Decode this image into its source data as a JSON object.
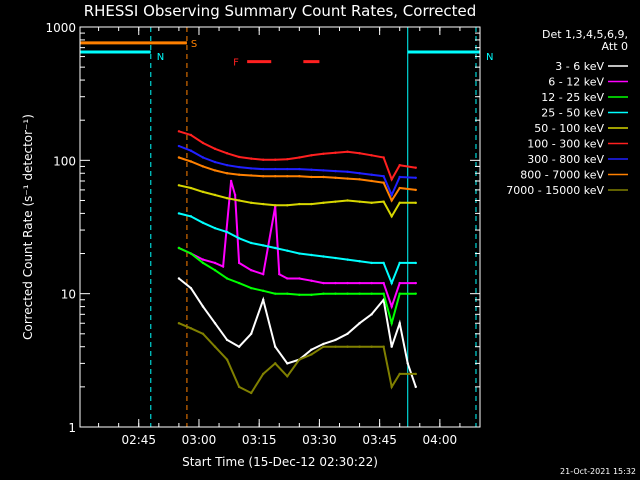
{
  "chart_data": {
    "type": "line",
    "title": "RHESSI Observing Summary Count Rates, Corrected",
    "xlabel": "Start Time (15-Dec-12 02:30:22)",
    "ylabel": "Corrected Count Rate (s⁻¹ detector⁻¹)",
    "yscale": "log",
    "ylim": [
      1,
      1000
    ],
    "xlim": [
      "02:30:22",
      "04:10:00"
    ],
    "x_ticks": [
      "02:45",
      "03:00",
      "03:15",
      "03:30",
      "03:45",
      "04:00"
    ],
    "y_ticks": [
      "1",
      "10",
      "100",
      "1000"
    ],
    "legend_header": [
      "Det 1,3,4,5,6,9,",
      "Att 0"
    ],
    "legend_position": "top-right",
    "series": [
      {
        "name": "3 - 6 keV",
        "color": "#ffffff",
        "points": [
          [
            "02:55",
            13
          ],
          [
            "02:58",
            11
          ],
          [
            "03:01",
            8
          ],
          [
            "03:04",
            6
          ],
          [
            "03:07",
            4.5
          ],
          [
            "03:10",
            4
          ],
          [
            "03:13",
            5
          ],
          [
            "03:16",
            9
          ],
          [
            "03:19",
            4
          ],
          [
            "03:22",
            3
          ],
          [
            "03:25",
            3.2
          ],
          [
            "03:28",
            3.8
          ],
          [
            "03:31",
            4.2
          ],
          [
            "03:34",
            4.5
          ],
          [
            "03:37",
            5
          ],
          [
            "03:40",
            6
          ],
          [
            "03:43",
            7
          ],
          [
            "03:46",
            9
          ],
          [
            "03:48",
            4
          ],
          [
            "03:50",
            6
          ],
          [
            "03:52",
            3
          ],
          [
            "03:54",
            2
          ]
        ]
      },
      {
        "name": "6 - 12 keV",
        "color": "#ff00ff",
        "points": [
          [
            "02:55",
            22
          ],
          [
            "02:58",
            20
          ],
          [
            "03:01",
            18
          ],
          [
            "03:04",
            17
          ],
          [
            "03:06",
            16
          ],
          [
            "03:08",
            70
          ],
          [
            "03:09",
            55
          ],
          [
            "03:10",
            17
          ],
          [
            "03:13",
            15
          ],
          [
            "03:16",
            14
          ],
          [
            "03:19",
            45
          ],
          [
            "03:20",
            14
          ],
          [
            "03:22",
            13
          ],
          [
            "03:25",
            13
          ],
          [
            "03:28",
            12.5
          ],
          [
            "03:31",
            12
          ],
          [
            "03:34",
            12
          ],
          [
            "03:37",
            12
          ],
          [
            "03:40",
            12
          ],
          [
            "03:43",
            12
          ],
          [
            "03:46",
            12
          ],
          [
            "03:48",
            8
          ],
          [
            "03:50",
            12
          ],
          [
            "03:54",
            12
          ]
        ]
      },
      {
        "name": "12 - 25 keV",
        "color": "#00ff00",
        "points": [
          [
            "02:55",
            22
          ],
          [
            "02:58",
            20
          ],
          [
            "03:01",
            17
          ],
          [
            "03:04",
            15
          ],
          [
            "03:07",
            13
          ],
          [
            "03:10",
            12
          ],
          [
            "03:13",
            11
          ],
          [
            "03:16",
            10.5
          ],
          [
            "03:19",
            10
          ],
          [
            "03:22",
            10
          ],
          [
            "03:25",
            9.8
          ],
          [
            "03:28",
            9.8
          ],
          [
            "03:31",
            10
          ],
          [
            "03:34",
            10
          ],
          [
            "03:37",
            10
          ],
          [
            "03:40",
            10
          ],
          [
            "03:43",
            10
          ],
          [
            "03:46",
            10
          ],
          [
            "03:48",
            6
          ],
          [
            "03:50",
            10
          ],
          [
            "03:54",
            10
          ]
        ]
      },
      {
        "name": "25 - 50 keV",
        "color": "#00ffff",
        "points": [
          [
            "02:55",
            40
          ],
          [
            "02:58",
            38
          ],
          [
            "03:01",
            34
          ],
          [
            "03:04",
            31
          ],
          [
            "03:07",
            29
          ],
          [
            "03:10",
            26
          ],
          [
            "03:13",
            24
          ],
          [
            "03:16",
            23
          ],
          [
            "03:19",
            22
          ],
          [
            "03:22",
            21
          ],
          [
            "03:25",
            20
          ],
          [
            "03:28",
            19.5
          ],
          [
            "03:31",
            19
          ],
          [
            "03:34",
            18.5
          ],
          [
            "03:37",
            18
          ],
          [
            "03:40",
            17.5
          ],
          [
            "03:43",
            17
          ],
          [
            "03:46",
            17
          ],
          [
            "03:48",
            12
          ],
          [
            "03:50",
            17
          ],
          [
            "03:54",
            17
          ]
        ]
      },
      {
        "name": "50 - 100 keV",
        "color": "#d6d600",
        "points": [
          [
            "02:55",
            65
          ],
          [
            "02:58",
            62
          ],
          [
            "03:01",
            58
          ],
          [
            "03:04",
            55
          ],
          [
            "03:07",
            52
          ],
          [
            "03:10",
            50
          ],
          [
            "03:13",
            48
          ],
          [
            "03:16",
            47
          ],
          [
            "03:19",
            46
          ],
          [
            "03:22",
            46
          ],
          [
            "03:25",
            47
          ],
          [
            "03:28",
            47
          ],
          [
            "03:31",
            48
          ],
          [
            "03:34",
            49
          ],
          [
            "03:37",
            50
          ],
          [
            "03:40",
            49
          ],
          [
            "03:43",
            48
          ],
          [
            "03:46",
            49
          ],
          [
            "03:48",
            38
          ],
          [
            "03:50",
            48
          ],
          [
            "03:54",
            48
          ]
        ]
      },
      {
        "name": "100 - 300 keV",
        "color": "#ff2020",
        "points": [
          [
            "02:55",
            165
          ],
          [
            "02:58",
            155
          ],
          [
            "03:01",
            135
          ],
          [
            "03:04",
            122
          ],
          [
            "03:07",
            113
          ],
          [
            "03:10",
            106
          ],
          [
            "03:13",
            103
          ],
          [
            "03:16",
            101
          ],
          [
            "03:19",
            101
          ],
          [
            "03:22",
            102
          ],
          [
            "03:25",
            105
          ],
          [
            "03:28",
            109
          ],
          [
            "03:31",
            112
          ],
          [
            "03:34",
            114
          ],
          [
            "03:37",
            116
          ],
          [
            "03:40",
            113
          ],
          [
            "03:43",
            109
          ],
          [
            "03:46",
            105
          ],
          [
            "03:48",
            72
          ],
          [
            "03:50",
            92
          ],
          [
            "03:54",
            88
          ]
        ]
      },
      {
        "name": "300 - 800 keV",
        "color": "#2020ff",
        "points": [
          [
            "02:55",
            128
          ],
          [
            "02:58",
            118
          ],
          [
            "03:01",
            105
          ],
          [
            "03:04",
            97
          ],
          [
            "03:07",
            92
          ],
          [
            "03:10",
            89
          ],
          [
            "03:13",
            87
          ],
          [
            "03:16",
            86
          ],
          [
            "03:19",
            86
          ],
          [
            "03:22",
            86
          ],
          [
            "03:25",
            86
          ],
          [
            "03:28",
            85
          ],
          [
            "03:31",
            84
          ],
          [
            "03:34",
            83
          ],
          [
            "03:37",
            82
          ],
          [
            "03:40",
            80
          ],
          [
            "03:43",
            78
          ],
          [
            "03:46",
            76
          ],
          [
            "03:48",
            55
          ],
          [
            "03:50",
            75
          ],
          [
            "03:54",
            74
          ]
        ]
      },
      {
        "name": "800 - 7000 keV",
        "color": "#ff8000",
        "points": [
          [
            "02:55",
            105
          ],
          [
            "02:58",
            98
          ],
          [
            "03:01",
            90
          ],
          [
            "03:04",
            84
          ],
          [
            "03:07",
            80
          ],
          [
            "03:10",
            78
          ],
          [
            "03:13",
            77
          ],
          [
            "03:16",
            76
          ],
          [
            "03:19",
            76
          ],
          [
            "03:22",
            76
          ],
          [
            "03:25",
            76
          ],
          [
            "03:28",
            75
          ],
          [
            "03:31",
            75
          ],
          [
            "03:34",
            74
          ],
          [
            "03:37",
            73
          ],
          [
            "03:40",
            72
          ],
          [
            "03:43",
            70
          ],
          [
            "03:46",
            68
          ],
          [
            "03:48",
            50
          ],
          [
            "03:50",
            62
          ],
          [
            "03:54",
            60
          ]
        ]
      },
      {
        "name": "7000 - 15000 keV",
        "color": "#808000",
        "points": [
          [
            "02:55",
            6
          ],
          [
            "02:58",
            5.5
          ],
          [
            "03:01",
            5
          ],
          [
            "03:04",
            4
          ],
          [
            "03:07",
            3.2
          ],
          [
            "03:10",
            2
          ],
          [
            "03:13",
            1.8
          ],
          [
            "03:16",
            2.5
          ],
          [
            "03:19",
            3
          ],
          [
            "03:22",
            2.4
          ],
          [
            "03:25",
            3.2
          ],
          [
            "03:28",
            3.5
          ],
          [
            "03:31",
            4
          ],
          [
            "03:34",
            4
          ],
          [
            "03:37",
            4
          ],
          [
            "03:40",
            4
          ],
          [
            "03:43",
            4
          ],
          [
            "03:46",
            4
          ],
          [
            "03:48",
            2
          ],
          [
            "03:50",
            2.5
          ],
          [
            "03:54",
            2.5
          ]
        ]
      }
    ],
    "annotations": [
      {
        "label": "N",
        "color": "#00ffff",
        "x_range": [
          "02:30:22",
          "02:48"
        ],
        "y": 650
      },
      {
        "label": "N",
        "color": "#00ffff",
        "x_range": [
          "03:52",
          "04:10"
        ],
        "y": 650
      },
      {
        "label": "S",
        "color": "#ff8000",
        "x_range": [
          "02:30:22",
          "02:57"
        ],
        "y": 760
      },
      {
        "label": "F",
        "color": "#ff2020",
        "segments": [
          [
            "03:12",
            "03:18"
          ],
          [
            "03:26",
            "03:30"
          ]
        ],
        "y": 550
      }
    ],
    "vlines": [
      {
        "x": "02:48",
        "color": "#00ffff",
        "style": "dashed"
      },
      {
        "x": "02:57",
        "color": "#ff8000",
        "style": "dashed"
      },
      {
        "x": "03:52",
        "color": "#00ffff",
        "style": "solid"
      },
      {
        "x": "04:09",
        "color": "#00ffff",
        "style": "dashed"
      }
    ],
    "grid": false
  },
  "footer": {
    "timestamp": "21-Oct-2021 15:32"
  }
}
